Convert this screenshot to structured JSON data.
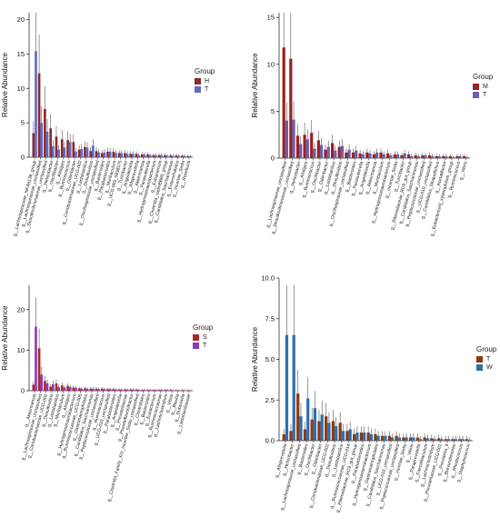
{
  "figure": {
    "ylabel": "Relative Abundance",
    "legend_title": "Group"
  },
  "chart_data": [
    {
      "type": "bar",
      "ylabel": "Relative Abundance",
      "ylim": [
        0,
        21
      ],
      "yticks": [
        0,
        5,
        10,
        15,
        20
      ],
      "grid": false,
      "legend": {
        "title": "Group",
        "position": "right"
      },
      "categories": [
        "g__Lachnospiraceae_NK4A136_group",
        "g__Lachnospiraceae_unclassified",
        "g__Desulfovibrionaceae_unclassified",
        "g__Helicobacter",
        "g__Oscillibacter",
        "g__Alistipes",
        "g__Ruminococcus",
        "g__Odoribacter",
        "g__Coriobacteriaceae_UCG-002",
        "g__Lactobacillus",
        "g__Desulfovibrio",
        "g__Oscillospiraceae_unclassified",
        "g__Bacteroides",
        "g__Parabacteroides",
        "g__Muribaculum",
        "g__UCG-009_0836575",
        "g__Turicibacter",
        "g__Angelakisella",
        "g__Alloprevotella",
        "g__Akkermansia",
        "g__Parasutterella",
        "g__Hydrogenoanaerobacterium",
        "g__Eubacterium",
        "g__Clostridia_vadinBB60_group",
        "g__Candidatus_Saccharimonas",
        "g__Enterorhabdus",
        "g__Incertae_Sedis",
        "g__Roseburia"
      ],
      "series": [
        {
          "name": "H",
          "color": "#8b2a2a",
          "values": [
            3.5,
            12.2,
            7.0,
            4.2,
            3.0,
            2.6,
            2.5,
            2.2,
            1.1,
            1.5,
            0.9,
            0.9,
            0.6,
            0.8,
            0.8,
            0.6,
            0.6,
            0.5,
            0.5,
            0.4,
            0.4,
            0.3,
            0.3,
            0.3,
            0.25,
            0.25,
            0.2,
            0.15
          ]
        },
        {
          "name": "T",
          "color": "#5c6bc8",
          "values": [
            15.4,
            5.0,
            3.7,
            1.6,
            1.1,
            1.4,
            2.2,
            0.8,
            1.2,
            1.4,
            1.7,
            0.7,
            0.7,
            0.8,
            0.6,
            0.6,
            0.5,
            0.5,
            0.3,
            0.4,
            0.3,
            0.3,
            0.3,
            0.2,
            0.2,
            0.2,
            0.2,
            0.15
          ]
        }
      ]
    },
    {
      "type": "bar",
      "ylabel": "Relative Abundance",
      "ylim": [
        0,
        15.5
      ],
      "yticks": [
        0,
        5,
        10,
        15
      ],
      "grid": false,
      "legend": {
        "title": "Group",
        "position": "right"
      },
      "categories": [
        "g__Lachnospiraceae_unclassified",
        "g__Desulfovibrionaceae_unclassified",
        "g__Helicobacter",
        "g__Alistipes",
        "g__Ruminococcus",
        "g__Oscillibacter",
        "g__Odoribacter",
        "g__Lactobacillus",
        "g__Desulfovibrio",
        "g__Oscillospiraceae_unclassified",
        "g__Bacteroides",
        "g__Parasutterella",
        "g__Angelakisella",
        "g__Akkermansia",
        "g__Muribaculum",
        "g__Hydrogenoanaerobacterium",
        "g__Incertae_Sedis",
        "g__Turicibacter",
        "g__Rikenellaceae_RC9_gut_group",
        "g__Candidatus_Saccharimonas",
        "g__Peptococcaceae_unclassified",
        "g__UCG-010_unclassified",
        "g__Candidatus_Stoquefichus",
        "g__Acetatifactor",
        "g__Eubacterium]_xylanophilum_group",
        "g__Ruminococcus",
        "g__Vibrio"
      ],
      "series": [
        {
          "name": "M",
          "color": "#9b2121",
          "values": [
            11.8,
            10.6,
            2.4,
            2.5,
            2.7,
            1.9,
            0.9,
            1.6,
            1.2,
            0.6,
            0.6,
            0.5,
            0.6,
            0.4,
            0.6,
            0.5,
            0.4,
            0.3,
            0.4,
            0.3,
            0.3,
            0.3,
            0.2,
            0.2,
            0.2,
            0.2,
            0.2
          ]
        },
        {
          "name": "T",
          "color": "#6a5fb0",
          "values": [
            4.0,
            4.1,
            1.5,
            2.0,
            1.0,
            1.4,
            1.2,
            0.8,
            1.3,
            0.9,
            0.8,
            0.4,
            0.5,
            0.6,
            0.4,
            0.3,
            0.4,
            0.5,
            0.2,
            0.2,
            0.3,
            0.2,
            0.2,
            0.2,
            0.1,
            0.2,
            0.1
          ]
        }
      ]
    },
    {
      "type": "bar",
      "ylabel": "Relative Abundance",
      "ylim": [
        0,
        26
      ],
      "yticks": [
        0,
        10,
        20
      ],
      "grid": false,
      "legend": {
        "title": "Group",
        "position": "right"
      },
      "categories": [
        "g__Akkermansia",
        "g__Lachnospiraceae_unclassified",
        "g__Coriobacteriaceae_UCG-002",
        "g__Desulfovibrio",
        "g__Lactobacillus",
        "g__Muribaculum",
        "g__Alistipes",
        "g__Hydrogenoanaerobacterium",
        "g__Ruminococcaceae_UCG-005",
        "g__Gastranaerophilales",
        "g__Candidatus_Saccharimonas",
        "g__Peptococcaceae_unclassified",
        "g__Ruminococcus",
        "g__UCG-010_unclassified",
        "g__Parabacteroides",
        "g__Angelakisella",
        "g__Prevotellaceae",
        "g__Pseudoflavonifractor",
        "g__Clostridia_Family_XIV_Incertae_Sedis_unclassified",
        "g__Clostridiales",
        "g__Bacteroides",
        "g__Eubacterium",
        "g__Ruminococcaceae",
        "g__Lachnoclostridium",
        "g__Vibrio",
        "g__Blautia",
        "g__Dubosiella",
        "g__Lactobacillaceae"
      ],
      "series": [
        {
          "name": "S",
          "color": "#a82a2a",
          "values": [
            1.5,
            10.5,
            2.4,
            1.0,
            1.8,
            1.3,
            1.2,
            0.8,
            0.6,
            0.6,
            0.5,
            0.5,
            0.5,
            0.4,
            0.4,
            0.3,
            0.3,
            0.3,
            0.3,
            0.2,
            0.2,
            0.2,
            0.2,
            0.2,
            0.2,
            0.15,
            0.15,
            0.1
          ]
        },
        {
          "name": "T",
          "color": "#8a3bb8",
          "values": [
            15.8,
            4.0,
            1.8,
            1.6,
            0.9,
            0.8,
            0.9,
            0.7,
            0.5,
            0.5,
            0.5,
            0.4,
            0.4,
            0.4,
            0.3,
            0.3,
            0.3,
            0.3,
            0.2,
            0.2,
            0.2,
            0.2,
            0.2,
            0.2,
            0.1,
            0.1,
            0.1,
            0.1
          ]
        }
      ]
    },
    {
      "type": "bar",
      "ylabel": "Relative Abundance",
      "ylim": [
        0,
        10
      ],
      "yticks": [
        0.0,
        2.5,
        5.0,
        7.5,
        10.0
      ],
      "grid": false,
      "legend": {
        "title": "Group",
        "position": "right"
      },
      "categories": [
        "g__Alloprevotella",
        "g__Helicobacter",
        "g__Lachnospiraceae_unclassified",
        "g__Bacteroides",
        "g__Oscillibacter",
        "g__Odoribacter",
        "g__Coriobacteriaceae_UCG-002",
        "g__Desulfovibrio",
        "g__Lactobacillus",
        "g__Ruminococcaceae_UCG-014",
        "g__Rikenellaceae_RC9_gut_group",
        "g__Parabacteroides",
        "g__Hydrogenoanaerobacterium",
        "g__Gastranaerophilales",
        "g__Candidatus_Saccharimonas",
        "g__UCG-010_unclassified",
        "g__Peptococcaceae_unclassified",
        "g__Incertae_Sedis",
        "g__Vibrio",
        "g__Paraprevotella",
        "g__Faecalibaculum",
        "g__Lachnoclostridium",
        "g__Prevotellaceae_UCG-001",
        "g__Prevotella_9",
        "g__Brevundimonas",
        "g__Rhodococcus",
        "g__Staphylococcus"
      ],
      "series": [
        {
          "name": "T",
          "color": "#8b3a12",
          "values": [
            0.4,
            0.6,
            2.9,
            0.7,
            1.3,
            1.2,
            1.5,
            1.2,
            1.1,
            0.6,
            0.4,
            0.5,
            0.5,
            0.4,
            0.3,
            0.3,
            0.3,
            0.2,
            0.2,
            0.2,
            0.2,
            0.15,
            0.15,
            0.1,
            0.1,
            0.1,
            0.1
          ]
        },
        {
          "name": "W",
          "color": "#2e6fb0",
          "values": [
            6.5,
            6.5,
            1.5,
            2.6,
            2.0,
            1.6,
            1.1,
            0.9,
            0.6,
            0.7,
            0.5,
            0.5,
            0.4,
            0.3,
            0.3,
            0.2,
            0.2,
            0.2,
            0.2,
            0.1,
            0.15,
            0.1,
            0.1,
            0.1,
            0.1,
            0.1,
            0.05
          ]
        }
      ]
    }
  ]
}
